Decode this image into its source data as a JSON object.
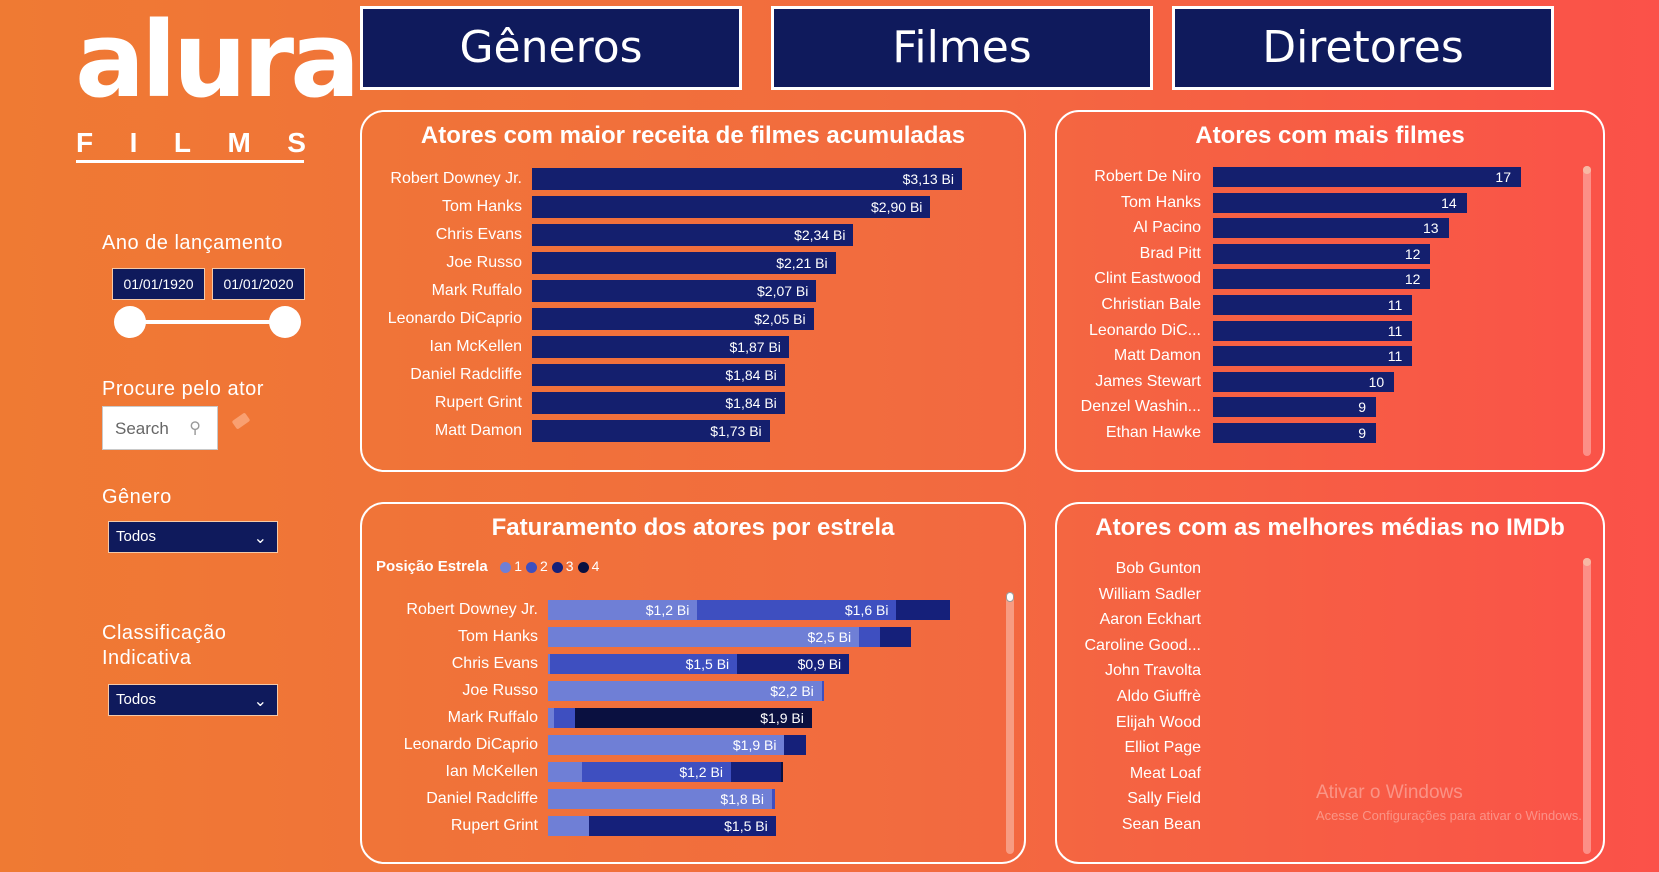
{
  "logo": {
    "main": "alura",
    "sub": [
      "F",
      "I",
      "L",
      "M",
      "S"
    ]
  },
  "filters": {
    "year_label": "Ano de lançamento",
    "date_from": "01/01/1920",
    "date_to": "01/01/2020",
    "actor_label": "Procure pelo ator",
    "search_placeholder": "Search",
    "genre_label": "Gênero",
    "genre_value": "Todos",
    "rating_label_1": "Classificação",
    "rating_label_2": "Indicativa",
    "rating_value": "Todos"
  },
  "nav": {
    "generos": "Gêneros",
    "filmes": "Filmes",
    "diretores": "Diretores"
  },
  "revenue_chart": {
    "title": "Atores com maior receita de filmes acumuladas",
    "rows": [
      {
        "name": "Robert Downey Jr.",
        "value": 3.13,
        "label": "$3,13 Bi"
      },
      {
        "name": "Tom Hanks",
        "value": 2.9,
        "label": "$2,90 Bi"
      },
      {
        "name": "Chris Evans",
        "value": 2.34,
        "label": "$2,34 Bi"
      },
      {
        "name": "Joe Russo",
        "value": 2.21,
        "label": "$2,21 Bi"
      },
      {
        "name": "Mark Ruffalo",
        "value": 2.07,
        "label": "$2,07 Bi"
      },
      {
        "name": "Leonardo DiCaprio",
        "value": 2.05,
        "label": "$2,05 Bi"
      },
      {
        "name": "Ian McKellen",
        "value": 1.87,
        "label": "$1,87 Bi"
      },
      {
        "name": "Daniel Radcliffe",
        "value": 1.84,
        "label": "$1,84 Bi"
      },
      {
        "name": "Rupert Grint",
        "value": 1.84,
        "label": "$1,84 Bi"
      },
      {
        "name": "Matt Damon",
        "value": 1.73,
        "label": "$1,73 Bi"
      }
    ]
  },
  "films_chart": {
    "title": "Atores com mais filmes",
    "rows": [
      {
        "name": "Robert De Niro",
        "value": 17
      },
      {
        "name": "Tom Hanks",
        "value": 14
      },
      {
        "name": "Al Pacino",
        "value": 13
      },
      {
        "name": "Brad Pitt",
        "value": 12
      },
      {
        "name": "Clint Eastwood",
        "value": 12
      },
      {
        "name": "Christian Bale",
        "value": 11
      },
      {
        "name": "Leonardo DiC...",
        "value": 11
      },
      {
        "name": "Matt Damon",
        "value": 11
      },
      {
        "name": "James Stewart",
        "value": 10
      },
      {
        "name": "Denzel Washin...",
        "value": 9
      },
      {
        "name": "Ethan Hawke",
        "value": 9
      }
    ]
  },
  "star_chart": {
    "title": "Faturamento dos atores por estrela",
    "legend_title": "Posição Estrela",
    "legend": [
      {
        "label": "1",
        "color": "#6f7fd6"
      },
      {
        "label": "2",
        "color": "#3e4fc0"
      },
      {
        "label": "3",
        "color": "#15207a"
      },
      {
        "label": "4",
        "color": "#0a1040"
      }
    ],
    "rows": [
      {
        "name": "Robert Downey Jr.",
        "segments": [
          {
            "v": 1.2,
            "l": "$1,2 Bi"
          },
          {
            "v": 1.6,
            "l": "$1,6 Bi"
          },
          {
            "v": 0.43,
            "l": ""
          },
          {
            "v": 0,
            "l": ""
          }
        ]
      },
      {
        "name": "Tom Hanks",
        "segments": [
          {
            "v": 2.5,
            "l": "$2,5 Bi"
          },
          {
            "v": 0.17,
            "l": ""
          },
          {
            "v": 0.25,
            "l": ""
          },
          {
            "v": 0,
            "l": ""
          }
        ]
      },
      {
        "name": "Chris Evans",
        "segments": [
          {
            "v": 0.02,
            "l": ""
          },
          {
            "v": 1.5,
            "l": "$1,5 Bi"
          },
          {
            "v": 0.9,
            "l": "$0,9 Bi"
          },
          {
            "v": 0,
            "l": ""
          }
        ]
      },
      {
        "name": "Joe Russo",
        "segments": [
          {
            "v": 2.2,
            "l": "$2,2 Bi"
          },
          {
            "v": 0.02,
            "l": ""
          },
          {
            "v": 0,
            "l": ""
          },
          {
            "v": 0,
            "l": ""
          }
        ]
      },
      {
        "name": "Mark Ruffalo",
        "segments": [
          {
            "v": 0.05,
            "l": ""
          },
          {
            "v": 0.17,
            "l": ""
          },
          {
            "v": 0,
            "l": ""
          },
          {
            "v": 1.9,
            "l": "$1,9 Bi"
          }
        ]
      },
      {
        "name": "Leonardo DiCaprio",
        "segments": [
          {
            "v": 1.9,
            "l": "$1,9 Bi"
          },
          {
            "v": 0,
            "l": ""
          },
          {
            "v": 0.17,
            "l": ""
          },
          {
            "v": 0,
            "l": ""
          }
        ]
      },
      {
        "name": "Ian McKellen",
        "segments": [
          {
            "v": 0.27,
            "l": ""
          },
          {
            "v": 1.2,
            "l": "$1,2 Bi"
          },
          {
            "v": 0.4,
            "l": ""
          },
          {
            "v": 0.02,
            "l": ""
          }
        ]
      },
      {
        "name": "Daniel Radcliffe",
        "segments": [
          {
            "v": 1.8,
            "l": "$1,8 Bi"
          },
          {
            "v": 0.02,
            "l": ""
          },
          {
            "v": 0,
            "l": ""
          },
          {
            "v": 0,
            "l": ""
          }
        ]
      },
      {
        "name": "Rupert Grint",
        "segments": [
          {
            "v": 0.33,
            "l": ""
          },
          {
            "v": 0,
            "l": ""
          },
          {
            "v": 1.5,
            "l": "$1,5 Bi"
          },
          {
            "v": 0,
            "l": ""
          }
        ]
      }
    ]
  },
  "imdb_chart": {
    "title": "Atores com as melhores médias no IMDb",
    "names": [
      "Bob Gunton",
      "William Sadler",
      "Aaron Eckhart",
      "Caroline Good...",
      "John Travolta",
      "Aldo Giuffrè",
      "Elijah Wood",
      "Elliot Page",
      "Meat Loaf",
      "Sally Field",
      "Sean Bean"
    ]
  },
  "watermark": {
    "line1": "Ativar o Windows",
    "line2": "Acesse Configurações para ativar o Windows."
  },
  "colors": {
    "navy": "#0f1a5c",
    "bar": "#141f6e"
  }
}
